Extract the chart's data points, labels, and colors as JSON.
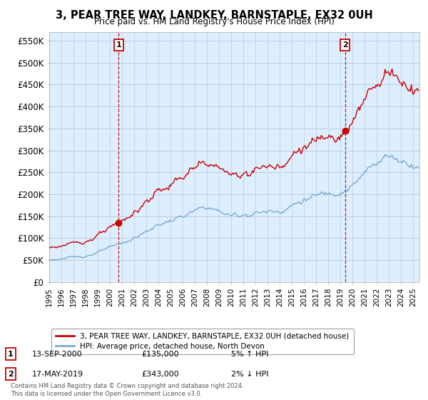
{
  "title": "3, PEAR TREE WAY, LANDKEY, BARNSTAPLE, EX32 0UH",
  "subtitle": "Price paid vs. HM Land Registry's House Price Index (HPI)",
  "legend_line1": "3, PEAR TREE WAY, LANDKEY, BARNSTAPLE, EX32 0UH (detached house)",
  "legend_line2": "HPI: Average price, detached house, North Devon",
  "sale1_label": "1",
  "sale1_date": "13-SEP-2000",
  "sale1_price": "£135,000",
  "sale1_hpi": "5% ↑ HPI",
  "sale1_year": 2000.71,
  "sale1_value": 135000,
  "sale2_label": "2",
  "sale2_date": "17-MAY-2019",
  "sale2_price": "£343,000",
  "sale2_hpi": "2% ↓ HPI",
  "sale2_year": 2019.37,
  "sale2_value": 343000,
  "copyright": "Contains HM Land Registry data © Crown copyright and database right 2024.\nThis data is licensed under the Open Government Licence v3.0.",
  "xmin": 1995,
  "xmax": 2025.5,
  "ymin": 0,
  "ymax": 570000,
  "yticks": [
    0,
    50000,
    100000,
    150000,
    200000,
    250000,
    300000,
    350000,
    400000,
    450000,
    500000,
    550000
  ],
  "ytick_labels": [
    "£0",
    "£50K",
    "£100K",
    "£150K",
    "£200K",
    "£250K",
    "£300K",
    "£350K",
    "£400K",
    "£450K",
    "£500K",
    "£550K"
  ],
  "hpi_color": "#7aaad4",
  "price_color": "#cc0000",
  "dashed_color": "#cc0000",
  "bg_color": "#ffffff",
  "chart_bg": "#ddeeff",
  "grid_color": "#bbccdd"
}
